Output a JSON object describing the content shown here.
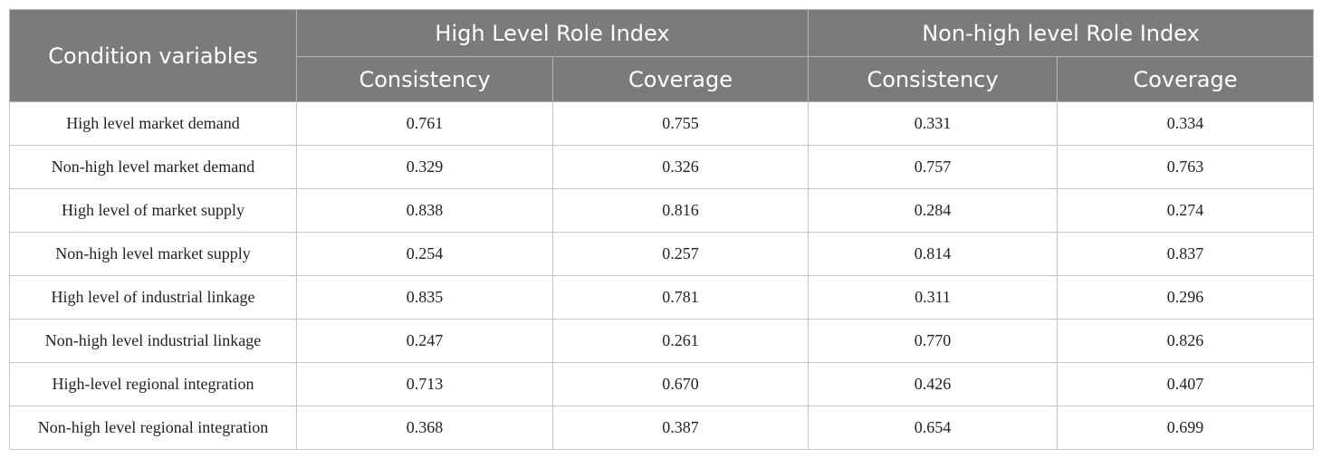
{
  "header": {
    "condition_label": "Condition variables",
    "group_high": "High Level Role Index",
    "group_nonhigh": "Non-high level Role Index",
    "sub_columns": [
      "Consistency",
      "Coverage",
      "Consistency",
      "Coverage"
    ]
  },
  "rows": [
    {
      "label": "High level market demand",
      "values": [
        "0.761",
        "0.755",
        "0.331",
        "0.334"
      ]
    },
    {
      "label": "Non-high level market demand",
      "values": [
        "0.329",
        "0.326",
        "0.757",
        "0.763"
      ]
    },
    {
      "label": "High level of market supply",
      "values": [
        "0.838",
        "0.816",
        "0.284",
        "0.274"
      ]
    },
    {
      "label": "Non-high level market supply",
      "values": [
        "0.254",
        "0.257",
        "0.814",
        "0.837"
      ]
    },
    {
      "label": "High level of industrial linkage",
      "values": [
        "0.835",
        "0.781",
        "0.311",
        "0.296"
      ]
    },
    {
      "label": "Non-high level industrial linkage",
      "values": [
        "0.247",
        "0.261",
        "0.770",
        "0.826"
      ]
    },
    {
      "label": "High-level regional integration",
      "values": [
        "0.713",
        "0.670",
        "0.426",
        "0.407"
      ]
    },
    {
      "label": "Non-high level regional integration",
      "values": [
        "0.368",
        "0.387",
        "0.654",
        "0.699"
      ]
    }
  ]
}
